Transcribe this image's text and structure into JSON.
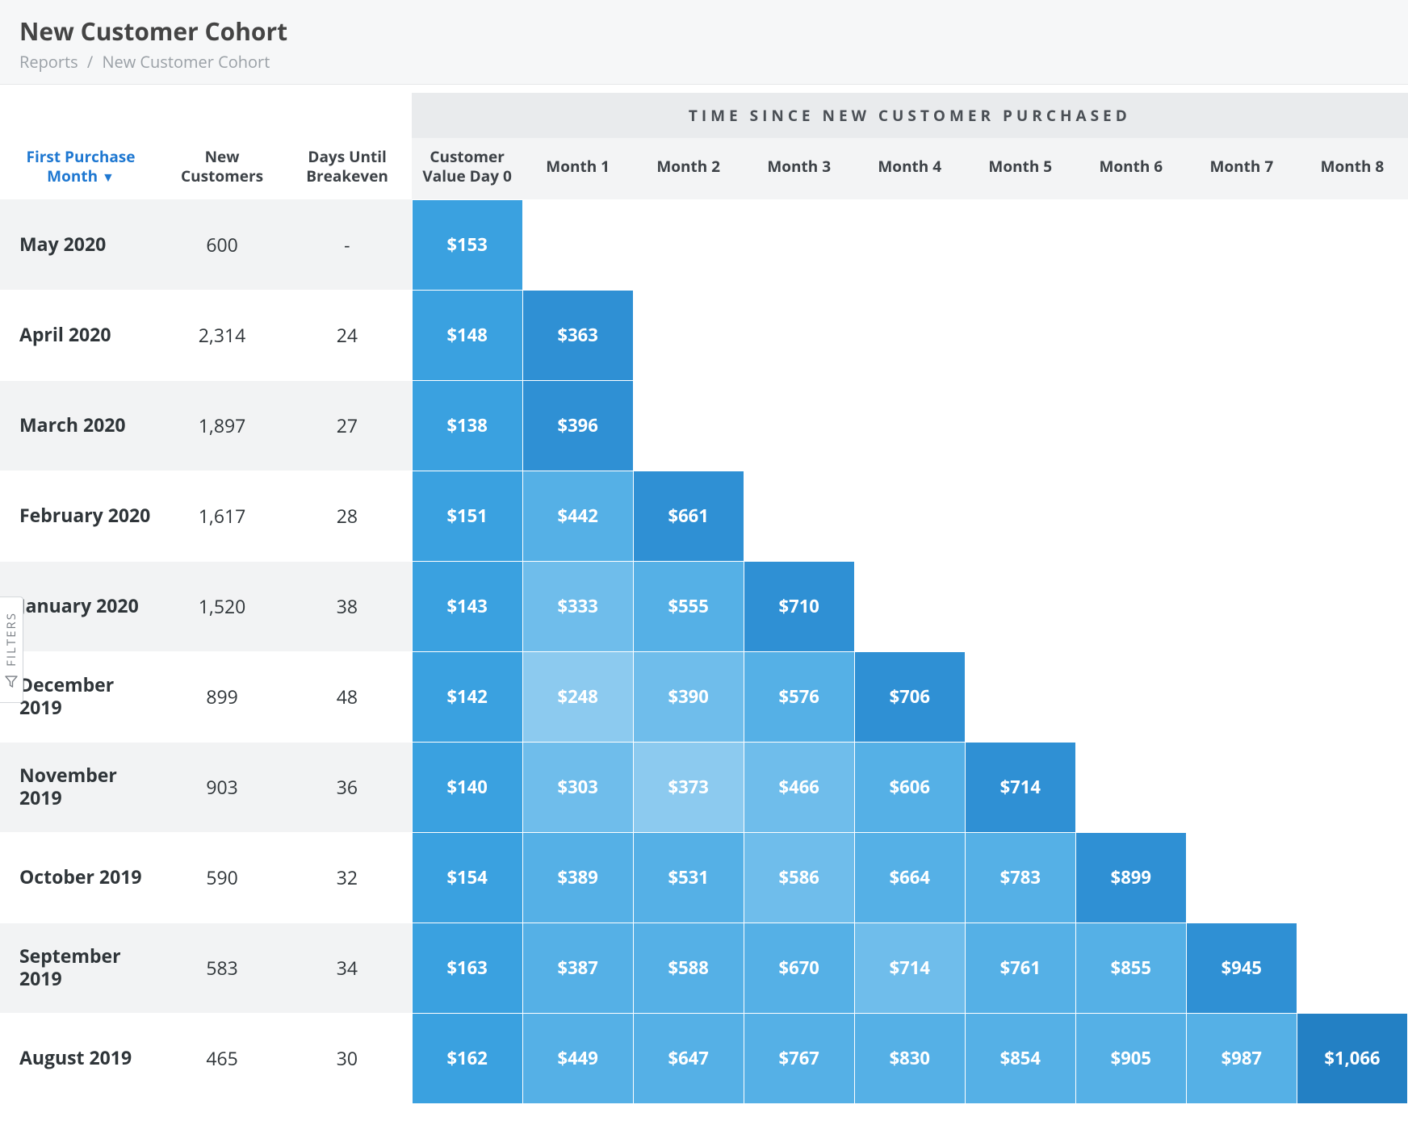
{
  "header": {
    "title": "New Customer Cohort",
    "breadcrumb_root": "Reports",
    "breadcrumb_current": "New Customer Cohort"
  },
  "filters": {
    "label": "FILTERS"
  },
  "table": {
    "band_title": "TIME SINCE NEW CUSTOMER PURCHASED",
    "columns": {
      "month": "First Purchase Month",
      "sort_indicator": "▼",
      "new_customers": "New Customers",
      "days_breakeven": "Days Until Breakeven",
      "value_day0": "Customer Value Day 0",
      "months": [
        "Month 1",
        "Month 2",
        "Month 3",
        "Month 4",
        "Month 5",
        "Month 6",
        "Month 7",
        "Month 8"
      ]
    },
    "heat_colors": {
      "c1": "#3aa1e0",
      "c2": "#55b0e6",
      "c3": "#6fbdeb",
      "c4": "#8ccaef",
      "c5": "#2f90d4",
      "c6": "#2380c4"
    },
    "rows": [
      {
        "month": "May 2020",
        "new": "600",
        "days": "-",
        "cells": [
          {
            "v": "$153",
            "c": "c1"
          }
        ]
      },
      {
        "month": "April 2020",
        "new": "2,314",
        "days": "24",
        "cells": [
          {
            "v": "$148",
            "c": "c1"
          },
          {
            "v": "$363",
            "c": "c5"
          }
        ]
      },
      {
        "month": "March 2020",
        "new": "1,897",
        "days": "27",
        "cells": [
          {
            "v": "$138",
            "c": "c1"
          },
          {
            "v": "$396",
            "c": "c5"
          }
        ]
      },
      {
        "month": "February 2020",
        "new": "1,617",
        "days": "28",
        "cells": [
          {
            "v": "$151",
            "c": "c1"
          },
          {
            "v": "$442",
            "c": "c2"
          },
          {
            "v": "$661",
            "c": "c5"
          }
        ]
      },
      {
        "month": "January 2020",
        "new": "1,520",
        "days": "38",
        "cells": [
          {
            "v": "$143",
            "c": "c1"
          },
          {
            "v": "$333",
            "c": "c3"
          },
          {
            "v": "$555",
            "c": "c2"
          },
          {
            "v": "$710",
            "c": "c5"
          }
        ]
      },
      {
        "month": "December 2019",
        "new": "899",
        "days": "48",
        "cells": [
          {
            "v": "$142",
            "c": "c1"
          },
          {
            "v": "$248",
            "c": "c4"
          },
          {
            "v": "$390",
            "c": "c3"
          },
          {
            "v": "$576",
            "c": "c2"
          },
          {
            "v": "$706",
            "c": "c5"
          }
        ]
      },
      {
        "month": "November 2019",
        "new": "903",
        "days": "36",
        "cells": [
          {
            "v": "$140",
            "c": "c1"
          },
          {
            "v": "$303",
            "c": "c3"
          },
          {
            "v": "$373",
            "c": "c4"
          },
          {
            "v": "$466",
            "c": "c3"
          },
          {
            "v": "$606",
            "c": "c2"
          },
          {
            "v": "$714",
            "c": "c5"
          }
        ]
      },
      {
        "month": "October 2019",
        "new": "590",
        "days": "32",
        "cells": [
          {
            "v": "$154",
            "c": "c1"
          },
          {
            "v": "$389",
            "c": "c2"
          },
          {
            "v": "$531",
            "c": "c2"
          },
          {
            "v": "$586",
            "c": "c3"
          },
          {
            "v": "$664",
            "c": "c2"
          },
          {
            "v": "$783",
            "c": "c2"
          },
          {
            "v": "$899",
            "c": "c5"
          }
        ]
      },
      {
        "month": "September 2019",
        "new": "583",
        "days": "34",
        "cells": [
          {
            "v": "$163",
            "c": "c1"
          },
          {
            "v": "$387",
            "c": "c2"
          },
          {
            "v": "$588",
            "c": "c2"
          },
          {
            "v": "$670",
            "c": "c2"
          },
          {
            "v": "$714",
            "c": "c3"
          },
          {
            "v": "$761",
            "c": "c2"
          },
          {
            "v": "$855",
            "c": "c2"
          },
          {
            "v": "$945",
            "c": "c5"
          }
        ]
      },
      {
        "month": "August 2019",
        "new": "465",
        "days": "30",
        "cells": [
          {
            "v": "$162",
            "c": "c1"
          },
          {
            "v": "$449",
            "c": "c2"
          },
          {
            "v": "$647",
            "c": "c2"
          },
          {
            "v": "$767",
            "c": "c2"
          },
          {
            "v": "$830",
            "c": "c2"
          },
          {
            "v": "$854",
            "c": "c2"
          },
          {
            "v": "$905",
            "c": "c2"
          },
          {
            "v": "$987",
            "c": "c2"
          },
          {
            "v": "$1,066",
            "c": "c6"
          }
        ]
      }
    ]
  }
}
